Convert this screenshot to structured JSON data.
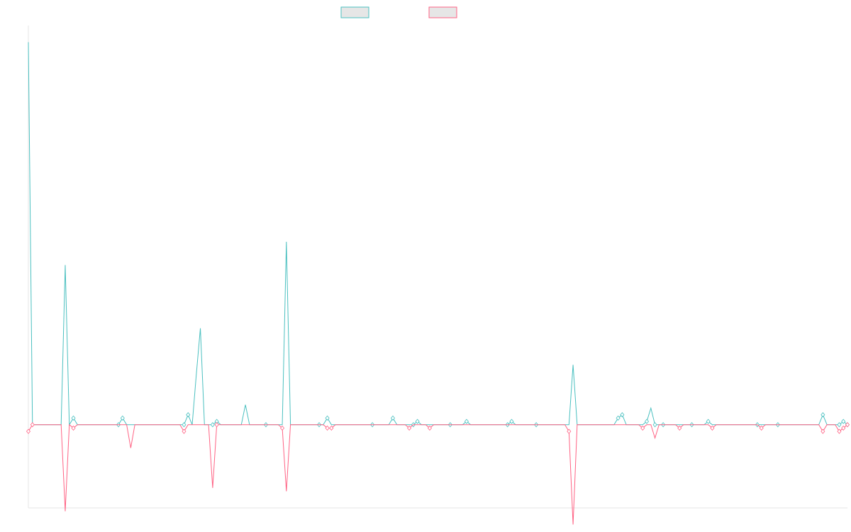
{
  "chart_data": {
    "type": "line",
    "title": "",
    "xlabel": "",
    "ylabel": "",
    "grid": false,
    "legend_position": "top-center",
    "x_count": 201,
    "ylim": [
      -25,
      120
    ],
    "series": [
      {
        "color": "#4bc0c0",
        "fill": "#e6e6e6",
        "points": [
          [
            0,
            115
          ],
          [
            9,
            48
          ],
          [
            11,
            2
          ],
          [
            22,
            0
          ],
          [
            23,
            2
          ],
          [
            38,
            0
          ],
          [
            39,
            3
          ],
          [
            41,
            15
          ],
          [
            42,
            29
          ],
          [
            45,
            0
          ],
          [
            46,
            1
          ],
          [
            53,
            6
          ],
          [
            58,
            0
          ],
          [
            63,
            55
          ],
          [
            71,
            0
          ],
          [
            73,
            2
          ],
          [
            84,
            0
          ],
          [
            89,
            2
          ],
          [
            94,
            0
          ],
          [
            95,
            1
          ],
          [
            103,
            0
          ],
          [
            107,
            1
          ],
          [
            117,
            0
          ],
          [
            118,
            1
          ],
          [
            124,
            0
          ],
          [
            133,
            18
          ],
          [
            144,
            2
          ],
          [
            145,
            3
          ],
          [
            151,
            1
          ],
          [
            152,
            5
          ],
          [
            153,
            0
          ],
          [
            155,
            0
          ],
          [
            162,
            0
          ],
          [
            166,
            1
          ],
          [
            178,
            0
          ],
          [
            183,
            0
          ],
          [
            194,
            3
          ],
          [
            198,
            0
          ],
          [
            199,
            1
          ],
          [
            200,
            0
          ]
        ]
      },
      {
        "color": "#ff6384",
        "fill": "#e6e6e6",
        "points": [
          [
            0,
            -2
          ],
          [
            1,
            0
          ],
          [
            9,
            -26
          ],
          [
            11,
            -1
          ],
          [
            25,
            -7
          ],
          [
            38,
            -2
          ],
          [
            45,
            -19
          ],
          [
            46,
            0
          ],
          [
            62,
            -1
          ],
          [
            63,
            -20
          ],
          [
            73,
            -1
          ],
          [
            74,
            -1
          ],
          [
            93,
            -1
          ],
          [
            98,
            -1
          ],
          [
            132,
            -2
          ],
          [
            133,
            -30
          ],
          [
            150,
            -1
          ],
          [
            153,
            -4
          ],
          [
            159,
            -1
          ],
          [
            167,
            -1
          ],
          [
            179,
            -1
          ],
          [
            194,
            -2
          ],
          [
            198,
            -2
          ],
          [
            199,
            -1
          ],
          [
            200,
            0
          ]
        ]
      }
    ]
  }
}
